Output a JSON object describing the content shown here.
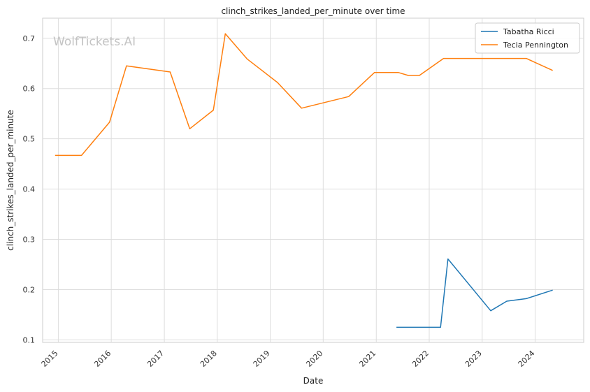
{
  "chart_data": {
    "type": "line",
    "title": "clinch_strikes_landed_per_minute over time",
    "xlabel": "Date",
    "ylabel": "clinch_strikes_landed_per_minute",
    "watermark": "WolfTickets.AI",
    "x_ticks": [
      "2015",
      "2016",
      "2017",
      "2018",
      "2019",
      "2020",
      "2021",
      "2022",
      "2023",
      "2024"
    ],
    "y_ticks": [
      "0.1",
      "0.2",
      "0.3",
      "0.4",
      "0.5",
      "0.6",
      "0.7"
    ],
    "xlim": [
      "2014-09-15",
      "2024-12-01"
    ],
    "ylim": [
      0.095,
      0.74
    ],
    "grid": true,
    "legend_position": "top-right",
    "series": [
      {
        "name": "Tabatha Ricci",
        "color": "#1f77b4",
        "points": [
          {
            "x": "2021-05-20",
            "y": 0.125
          },
          {
            "x": "2022-03-20",
            "y": 0.125
          },
          {
            "x": "2022-05-10",
            "y": 0.261
          },
          {
            "x": "2023-03-01",
            "y": 0.158
          },
          {
            "x": "2023-06-20",
            "y": 0.177
          },
          {
            "x": "2023-11-01",
            "y": 0.182
          },
          {
            "x": "2024-05-01",
            "y": 0.199
          }
        ]
      },
      {
        "name": "Tecia Pennington",
        "color": "#ff7f0e",
        "points": [
          {
            "x": "2014-12-10",
            "y": 0.467
          },
          {
            "x": "2015-06-10",
            "y": 0.467
          },
          {
            "x": "2015-12-20",
            "y": 0.533
          },
          {
            "x": "2016-04-15",
            "y": 0.645
          },
          {
            "x": "2017-02-10",
            "y": 0.633
          },
          {
            "x": "2017-06-25",
            "y": 0.52
          },
          {
            "x": "2017-12-05",
            "y": 0.557
          },
          {
            "x": "2018-02-25",
            "y": 0.709
          },
          {
            "x": "2018-07-25",
            "y": 0.659
          },
          {
            "x": "2019-02-20",
            "y": 0.612
          },
          {
            "x": "2019-08-05",
            "y": 0.561
          },
          {
            "x": "2020-06-25",
            "y": 0.584
          },
          {
            "x": "2020-12-20",
            "y": 0.632
          },
          {
            "x": "2021-06-01",
            "y": 0.632
          },
          {
            "x": "2021-08-10",
            "y": 0.626
          },
          {
            "x": "2021-10-25",
            "y": 0.626
          },
          {
            "x": "2022-04-10",
            "y": 0.66
          },
          {
            "x": "2023-11-01",
            "y": 0.66
          },
          {
            "x": "2024-05-01",
            "y": 0.636
          }
        ]
      }
    ]
  }
}
